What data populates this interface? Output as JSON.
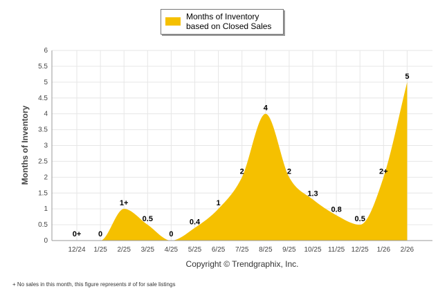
{
  "legend": {
    "label": "Months of Inventory based on Closed Sales"
  },
  "copyright": "Copyright © Trendgraphix, Inc.",
  "footnote": "+ No sales in this month, this figure represents # of for sale listings",
  "colors": {
    "area_fill": "#f5c000",
    "grid": "#e6e6e6",
    "axis": "#999999"
  },
  "chart_data": {
    "type": "area",
    "title": "",
    "xlabel": "",
    "ylabel": "Months of Inventory",
    "ylim": [
      0,
      6
    ],
    "y_ticks": [
      "0",
      "0.5",
      "1",
      "1.5",
      "2",
      "2.5",
      "3",
      "3.5",
      "4",
      "4.5",
      "5",
      "5.5",
      "6"
    ],
    "categories": [
      "12/24",
      "1/25",
      "2/25",
      "3/25",
      "4/25",
      "5/25",
      "6/25",
      "7/25",
      "8/25",
      "9/25",
      "10/25",
      "11/25",
      "12/25",
      "1/26",
      "2/26"
    ],
    "series": [
      {
        "name": "Months of Inventory based on Closed Sales",
        "values": [
          0,
          0,
          1,
          0.5,
          0,
          0.4,
          1,
          2,
          4,
          2,
          1.3,
          0.8,
          0.5,
          2,
          5
        ],
        "labels": [
          "0+",
          "0",
          "1+",
          "0.5",
          "0",
          "0.4",
          "1",
          "2",
          "4",
          "2",
          "1.3",
          "0.8",
          "0.5",
          "2+",
          "5"
        ]
      }
    ]
  }
}
